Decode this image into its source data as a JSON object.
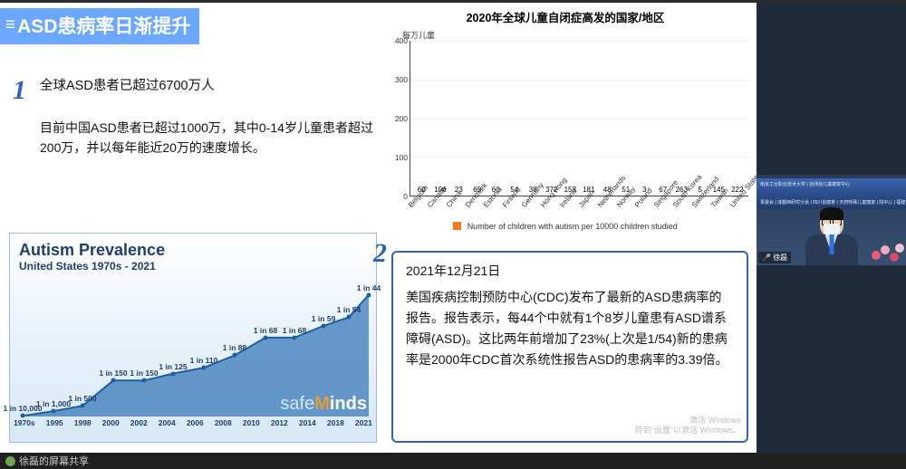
{
  "slide": {
    "title": "ASD患病率日渐提升",
    "title_band_color": "#6aa8ff",
    "bullet1_badge": "1",
    "bullet1_head": "全球ASD患者已超过6700万人",
    "bullet1_body": "目前中国ASD患者已超过1000万，其中0-14岁儿童患者超过200万，并以每年能近20万的速度增长。",
    "bullet2_badge": "2",
    "cdc_date": "2021年12月21日",
    "cdc_body": "美国疾病控制预防中心(CDC)发布了最新的ASD患病率的报告。报告表示，每44个中就有1个8岁儿童患有ASD谱系障碍(ASD)。这比两年前增加了23%(上次是1/54)新的患病率是2000年CDC首次系统性报告ASD的患病率的3.39倍。",
    "watermark_line1": "激活 Windows",
    "watermark_line2": "转到\"设置\"以激活 Windows。"
  },
  "bar_chart": {
    "title": "2020年全球儿童自闭症高发的国家/地区",
    "y_unit": "每万儿童",
    "type": "bar",
    "ylim": [
      0,
      400
    ],
    "ytick_step": 100,
    "grid_color": "#eeeeee",
    "bar_color": "#f07a1f",
    "legend": "Number of children with autism per 10000 children studied",
    "categories": [
      "Belgium",
      "Canada",
      "China",
      "Denmark",
      "Estonia",
      "Finland",
      "Germany",
      "Hong Kong",
      "Ireland",
      "Japan",
      "Netherlands",
      "Norway",
      "Poland",
      "Singapore",
      "South Korea",
      "Switzerland",
      "Taiwan",
      "United States"
    ],
    "values": [
      60,
      106,
      23,
      69,
      60,
      54,
      38,
      372,
      153,
      181,
      48,
      51,
      3,
      67,
      263,
      5,
      145,
      222
    ]
  },
  "inset": {
    "title": "Autism Prevalence",
    "subtitle": "United States 1970s - 2021",
    "title_color": "#1f3e6b",
    "bg_gradient_top": "#ffffff",
    "bg_gradient_bottom": "#d7e8f6",
    "area_color": "#4e87bf",
    "area_stroke": "#1e5fa3",
    "logo_safe": "safe",
    "logo_minds": "Minds",
    "years": [
      "1970s",
      "1995",
      "1998",
      "2000",
      "2002",
      "2004",
      "2006",
      "2008",
      "2010",
      "2012",
      "2014",
      "2018",
      "2021"
    ],
    "point_x": [
      0.03,
      0.115,
      0.195,
      0.28,
      0.365,
      0.445,
      0.53,
      0.615,
      0.7,
      0.78,
      0.86,
      0.93,
      0.985
    ],
    "ratios": [
      "1 in 10,000",
      "1 in 1,000",
      "1 in 500",
      "1 in 150",
      "1 in 150",
      "1 in 125",
      "1 in 110",
      "1 in 88",
      "1 in 68",
      "1 in 68",
      "1 in 59",
      "1 in 54",
      "1 in 44"
    ],
    "values_per10k": [
      1,
      10,
      20,
      67,
      67,
      80,
      91,
      114,
      147,
      147,
      169,
      185,
      227
    ],
    "ymax": 260
  },
  "bottombar": {
    "share_text": "徐磊的屏幕共享"
  },
  "speaker": {
    "name_label": "徐磊",
    "banner_line1": "南京工业职业技术大学 | 自闭症儿童康复中心",
    "banner_line2": "事委会 | 成都西研究分会 | 四川省康复 | 天府特殊儿童康复 | 院中心 | 福建省新华 | 特色健康人员"
  },
  "colors": {
    "accent_blue": "#2f63c0",
    "title_band": "#6aa8ff",
    "brand_orange": "#f07a1f"
  }
}
